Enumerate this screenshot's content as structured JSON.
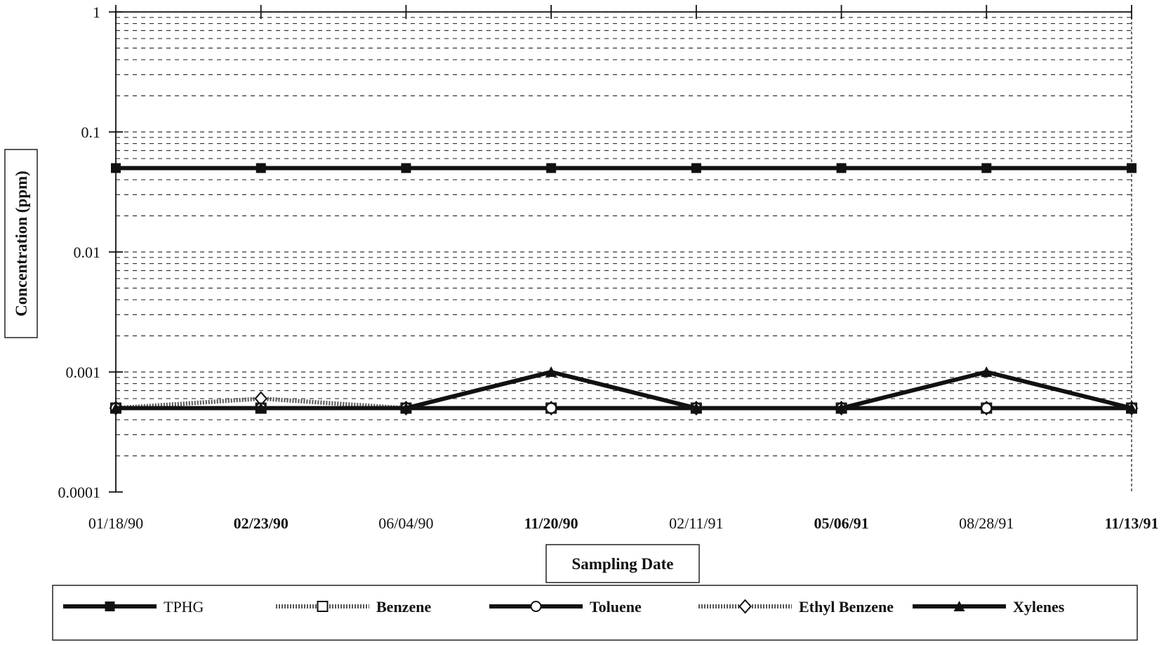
{
  "chart_data": {
    "type": "line",
    "xlabel": "Sampling Date",
    "ylabel": "Concentration (ppm)",
    "y_scale": "log",
    "ylim": [
      0.0001,
      1
    ],
    "y_ticks": [
      "1",
      "0.1",
      "0.01",
      "0.001",
      "0.0001"
    ],
    "categories": [
      "01/18/90",
      "02/23/90",
      "06/04/90",
      "11/20/90",
      "02/11/91",
      "05/06/91",
      "08/28/91",
      "11/13/91"
    ],
    "grid": "dashed horizontal minor gridlines",
    "legend_position": "bottom",
    "series": [
      {
        "name": "TPHG",
        "marker": "filled-square",
        "style": "thick-solid",
        "values": [
          0.05,
          0.05,
          0.05,
          0.05,
          0.05,
          0.05,
          0.05,
          0.05
        ]
      },
      {
        "name": "Benzene",
        "marker": "open-square",
        "style": "hatched",
        "values": [
          0.0005,
          0.0005,
          0.0005,
          0.0005,
          0.0005,
          0.0005,
          0.0005,
          0.0005
        ]
      },
      {
        "name": "Toluene",
        "marker": "open-circle",
        "style": "thick-solid",
        "values": [
          0.0005,
          0.0005,
          0.0005,
          0.0005,
          0.0005,
          0.0005,
          0.0005,
          0.0005
        ]
      },
      {
        "name": "Ethyl Benzene",
        "marker": "open-diamond",
        "style": "hatched",
        "values": [
          0.0005,
          0.0006,
          0.0005,
          0.0005,
          0.0005,
          0.0005,
          0.0005,
          0.0005
        ]
      },
      {
        "name": "Xylenes",
        "marker": "filled-triangle",
        "style": "thick-solid",
        "values": [
          0.0005,
          0.0005,
          0.0005,
          0.001,
          0.0005,
          0.0005,
          0.001,
          0.0005
        ]
      }
    ]
  }
}
